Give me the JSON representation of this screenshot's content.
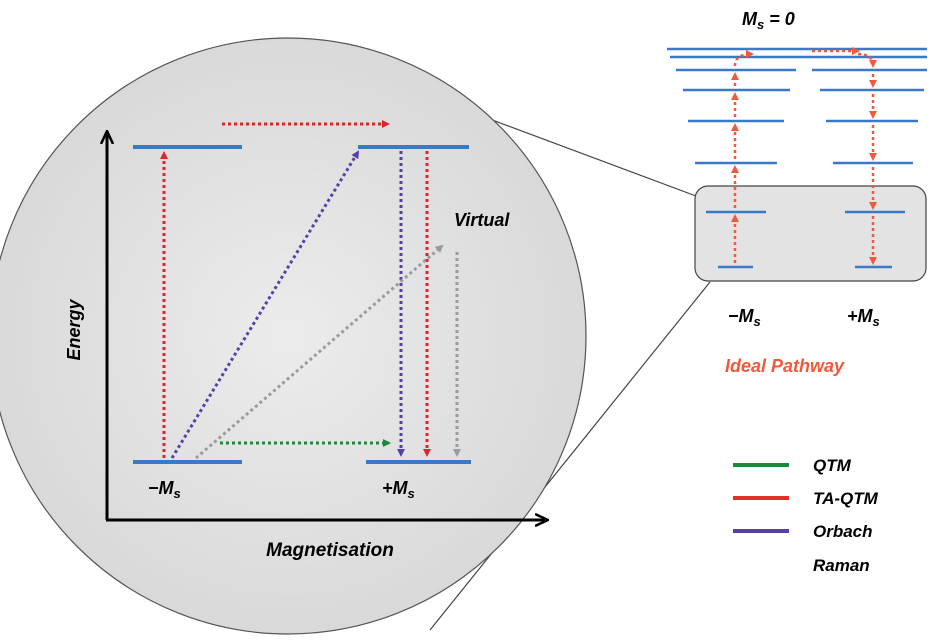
{
  "axes": {
    "x_label": "Magnetisation",
    "y_label": "Energy"
  },
  "zoom_view": {
    "minus_label": "−M",
    "plus_label": "+M",
    "subscript": "s",
    "virtual_label": "Virtual"
  },
  "ladder": {
    "top_label": "M",
    "top_subscript": "s",
    "top_suffix": " = 0",
    "minus_label": "−M",
    "plus_label": "+M",
    "subscript": "s",
    "caption": "Ideal Pathway"
  },
  "legend": {
    "items": [
      {
        "label": "QTM",
        "color": "#1a8a3a"
      },
      {
        "label": "TA-QTM",
        "color": "#e0302a"
      },
      {
        "label": "Orbach",
        "color": "#5a3ea8"
      },
      {
        "label": "Raman",
        "color": "#8c8c96"
      }
    ]
  },
  "colors": {
    "level": "#3a78c8",
    "pathway": "#ee5a3a",
    "circle_fill": "#e3e3e3"
  }
}
